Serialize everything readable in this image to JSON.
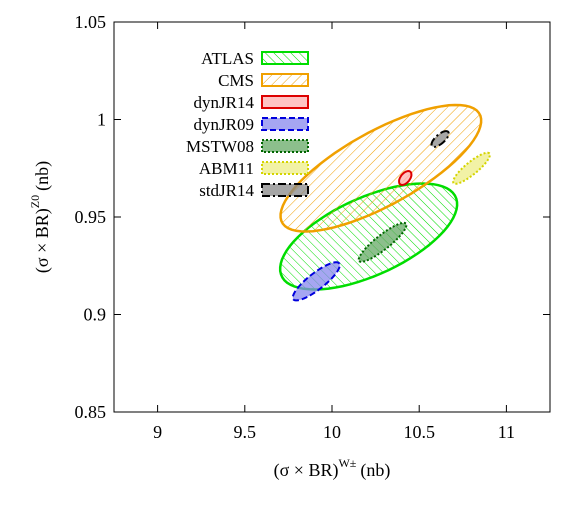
{
  "chart_data": {
    "type": "ellipse-contour",
    "title": "",
    "xlabel": {
      "main": "(σ × BR)",
      "sup": "W±",
      "unit": "(nb)"
    },
    "ylabel": {
      "main": "(σ × BR)",
      "sup": "Z0",
      "unit": "(nb)"
    },
    "xlim": [
      8.75,
      11.25
    ],
    "ylim": [
      0.85,
      1.05
    ],
    "xticks": [
      "9",
      "9.5",
      "10",
      "10.5",
      "11"
    ],
    "yticks": [
      "0.85",
      "0.9",
      "0.95",
      "1",
      "1.05"
    ],
    "legend_position": "top-left",
    "grid": false,
    "series": [
      {
        "name": "ATLAS",
        "stroke": "#00dd00",
        "fill": "#00dd00",
        "pattern": "diag-up",
        "dash": "",
        "center": [
          10.21,
          0.94
        ],
        "a": 1.12,
        "b": 0.0195,
        "angle": 0.0425
      },
      {
        "name": "CMS",
        "stroke": "#f0a000",
        "fill": "#f0a000",
        "pattern": "diag-down",
        "dash": "",
        "center": [
          10.28,
          0.975
        ],
        "a": 1.33,
        "b": 0.0185,
        "angle": 0.0506
      },
      {
        "name": "dynJR14",
        "stroke": "#dd0000",
        "fill": "#ffb0b0",
        "pattern": "solid",
        "dash": "",
        "center": [
          10.42,
          0.97
        ],
        "a": 0.1,
        "b": 0.0022,
        "angle": 0.125
      },
      {
        "name": "dynJR09",
        "stroke": "#0000dd",
        "fill": "#8888ee",
        "pattern": "solid",
        "dash": "6,3",
        "center": [
          9.91,
          0.917
        ],
        "a": 0.35,
        "b": 0.004,
        "angle": 0.0714
      },
      {
        "name": "MSTW08",
        "stroke": "#006600",
        "fill": "#66aa66",
        "pattern": "solid",
        "dash": "2,2",
        "center": [
          10.29,
          0.937
        ],
        "a": 0.36,
        "b": 0.0035,
        "angle": 0.0722
      },
      {
        "name": "ABM11",
        "stroke": "#d4d400",
        "fill": "#eeee88",
        "pattern": "solid",
        "dash": "2,2",
        "center": [
          10.8,
          0.975
        ],
        "a": 0.28,
        "b": 0.003,
        "angle": 0.075
      },
      {
        "name": "stdJR14",
        "stroke": "#000000",
        "fill": "#888888",
        "pattern": "solid",
        "dash": "8,3,2,3",
        "center": [
          10.62,
          0.99
        ],
        "a": 0.13,
        "b": 0.0022,
        "angle": 0.083
      }
    ]
  }
}
